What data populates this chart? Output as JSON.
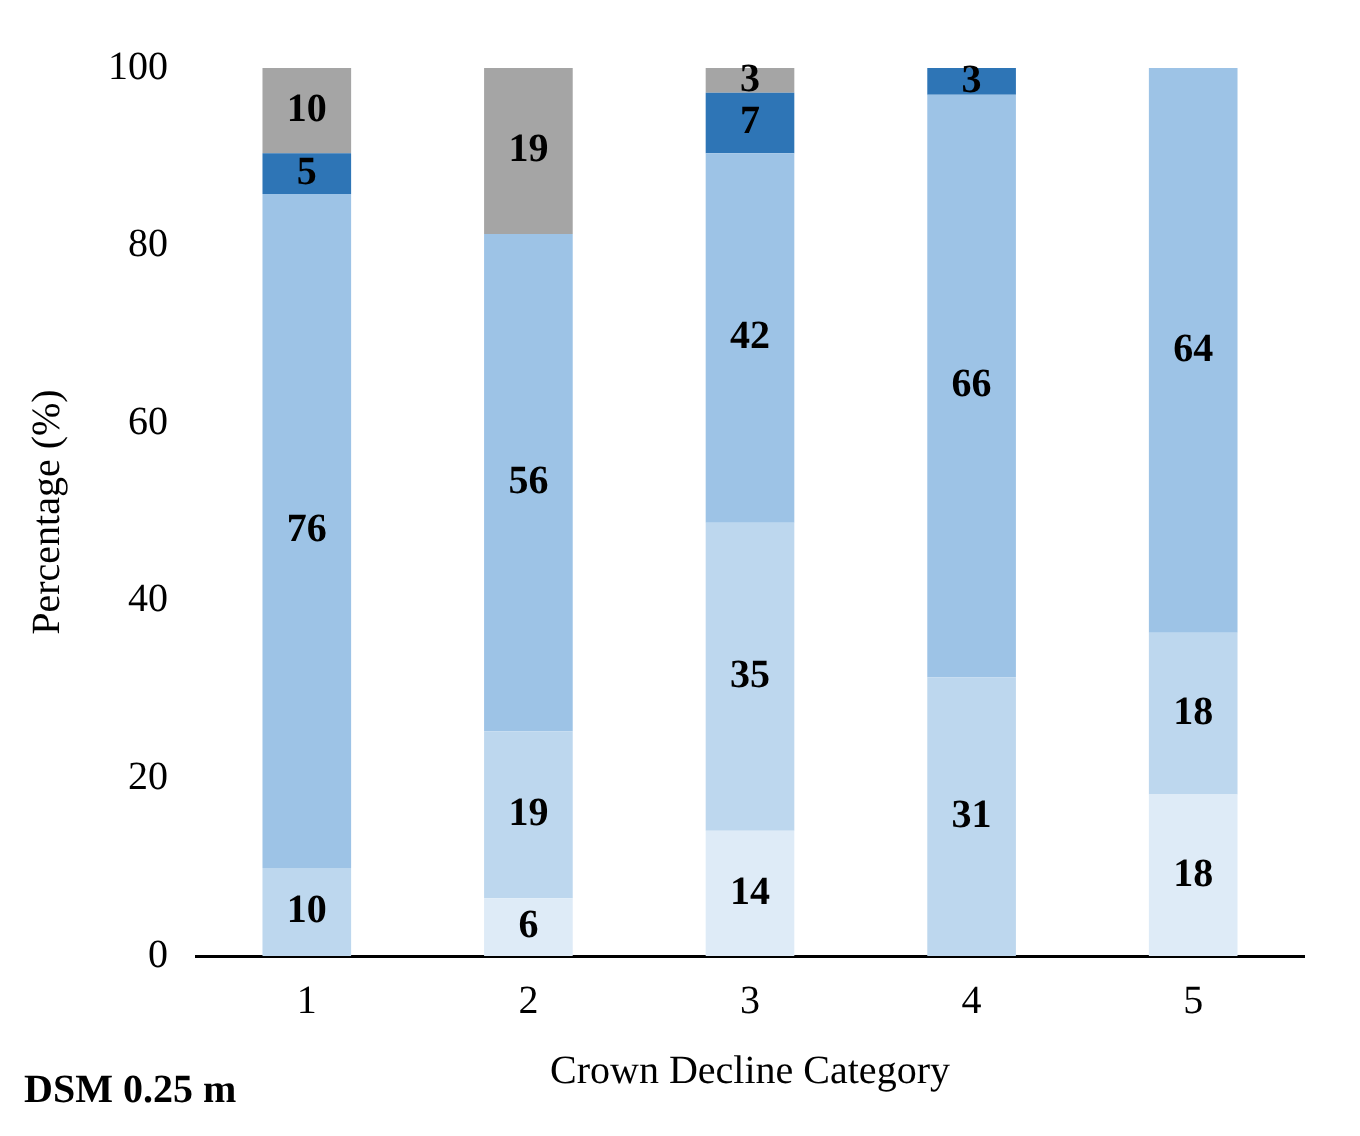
{
  "chart_data": {
    "type": "bar",
    "stacked": true,
    "xlabel": "Crown Decline Category",
    "ylabel": "Percentage (%)",
    "categories": [
      "1",
      "2",
      "3",
      "4",
      "5"
    ],
    "series": [
      {
        "color": "#deebf7",
        "values": [
          null,
          6.5,
          14.1,
          null,
          18.2
        ],
        "value_labels": [
          null,
          "6",
          "14",
          null,
          "18"
        ]
      },
      {
        "color": "#bdd7ee",
        "values": [
          9.9,
          18.8,
          34.7,
          31.4,
          18.2
        ],
        "value_labels": [
          "10",
          "19",
          "35",
          "31",
          "18"
        ]
      },
      {
        "color": "#9dc3e6",
        "values": [
          75.9,
          56.0,
          41.6,
          65.6,
          63.6
        ],
        "value_labels": [
          "76",
          "56",
          "42",
          "66",
          "64"
        ]
      },
      {
        "color": "#2e75b6",
        "values": [
          4.6,
          null,
          6.8,
          3.0,
          null
        ],
        "value_labels": [
          "5",
          null,
          "7",
          "3",
          null
        ]
      },
      {
        "color": "#a5a5a5",
        "values": [
          9.6,
          18.7,
          2.8,
          null,
          null
        ],
        "value_labels": [
          "10",
          "19",
          "3",
          null,
          null
        ]
      }
    ],
    "ylim": [
      0,
      100
    ],
    "yticks": [
      0,
      20,
      40,
      60,
      80,
      100
    ],
    "grid": false,
    "legend": false,
    "annotations": [
      "DSM 0.25 m"
    ]
  }
}
